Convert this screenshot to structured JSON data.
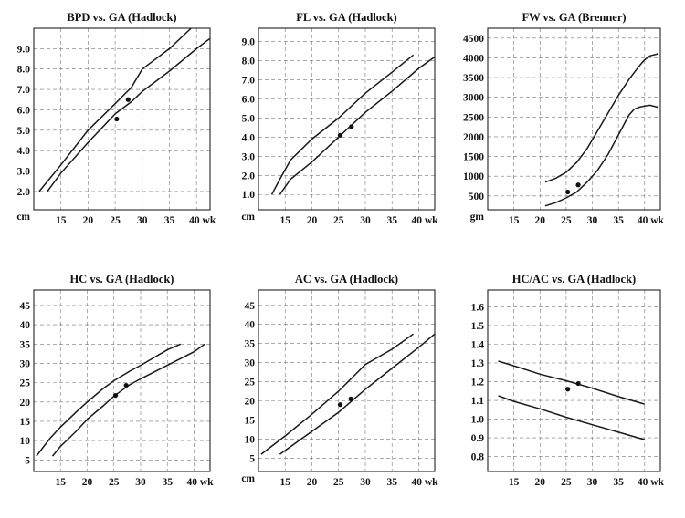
{
  "chart_data": [
    {
      "type": "line",
      "title": "BPD vs. GA (Hadlock)",
      "x_ticks": [
        "15",
        "20",
        "25",
        "30",
        "35",
        "40 wk"
      ],
      "x_tick_values": [
        15,
        20,
        25,
        30,
        35,
        40
      ],
      "y_ticks": [
        "2.0",
        "3.0",
        "4.0",
        "5.0",
        "6.0",
        "7.0",
        "8.0",
        "9.0"
      ],
      "y_tick_values": [
        2,
        3,
        4,
        5,
        6,
        7,
        8,
        9
      ],
      "y_unit": "cm",
      "xlim": [
        10,
        42.5
      ],
      "ylim": [
        1.1,
        10.0
      ],
      "grid": true,
      "series": [
        {
          "x": [
            11,
            15,
            20,
            25,
            28,
            30,
            35,
            39
          ],
          "y": [
            2.0,
            3.3,
            5.0,
            6.3,
            7.1,
            8.0,
            9.0,
            10.0
          ]
        },
        {
          "x": [
            12.5,
            15,
            20,
            25,
            28,
            30,
            35,
            40,
            42.5
          ],
          "y": [
            2.0,
            2.9,
            4.4,
            5.8,
            6.4,
            6.9,
            7.9,
            9.0,
            9.5
          ]
        }
      ],
      "points": [
        {
          "x": 25.3,
          "y": 5.55
        },
        {
          "x": 27.4,
          "y": 6.5
        }
      ]
    },
    {
      "type": "line",
      "title": "FL vs. GA (Hadlock)",
      "x_ticks": [
        "15",
        "20",
        "25",
        "30",
        "35",
        "40 wk"
      ],
      "x_tick_values": [
        15,
        20,
        25,
        30,
        35,
        40
      ],
      "y_ticks": [
        "1.0",
        "2.0",
        "3.0",
        "4.0",
        "5.0",
        "6.0",
        "7.0",
        "8.0",
        "9.0"
      ],
      "y_tick_values": [
        1,
        2,
        3,
        4,
        5,
        6,
        7,
        8,
        9
      ],
      "y_unit": "cm",
      "xlim": [
        10,
        43
      ],
      "ylim": [
        0.2,
        9.7
      ],
      "grid": true,
      "series": [
        {
          "x": [
            12.5,
            14,
            16,
            20,
            25,
            30,
            35,
            39
          ],
          "y": [
            1.0,
            1.8,
            2.8,
            3.9,
            5.0,
            6.3,
            7.4,
            8.3
          ]
        },
        {
          "x": [
            14,
            16,
            20,
            25,
            30,
            35,
            40,
            43
          ],
          "y": [
            1.0,
            1.8,
            2.7,
            4.0,
            5.3,
            6.4,
            7.6,
            8.2
          ]
        }
      ],
      "points": [
        {
          "x": 25.3,
          "y": 4.1
        },
        {
          "x": 27.4,
          "y": 4.55
        }
      ]
    },
    {
      "type": "line",
      "title": "FW vs. GA  (Brenner)",
      "x_ticks": [
        "15",
        "20",
        "25",
        "30",
        "35",
        "40 wk"
      ],
      "x_tick_values": [
        15,
        20,
        25,
        30,
        35,
        40
      ],
      "y_ticks": [
        "500",
        "1000",
        "1500",
        "2000",
        "2500",
        "3000",
        "3500",
        "4000",
        "4500"
      ],
      "y_tick_values": [
        500,
        1000,
        1500,
        2000,
        2500,
        3000,
        3500,
        4000,
        4500
      ],
      "y_unit": "gm",
      "xlim": [
        10,
        43
      ],
      "ylim": [
        150,
        4750
      ],
      "grid": true,
      "series": [
        {
          "x": [
            21,
            23,
            25,
            27,
            29,
            31,
            33,
            35,
            37,
            39,
            40,
            41,
            42.5
          ],
          "y": [
            850,
            950,
            1100,
            1350,
            1700,
            2150,
            2600,
            3050,
            3450,
            3800,
            3950,
            4050,
            4100
          ]
        },
        {
          "x": [
            21,
            23,
            25,
            27,
            29,
            31,
            33,
            35,
            36,
            37,
            38,
            39,
            40,
            41,
            42.5
          ],
          "y": [
            250,
            330,
            450,
            600,
            850,
            1150,
            1550,
            2050,
            2300,
            2550,
            2700,
            2750,
            2780,
            2800,
            2750
          ]
        }
      ],
      "points": [
        {
          "x": 25.3,
          "y": 600
        },
        {
          "x": 27.3,
          "y": 780
        }
      ]
    },
    {
      "type": "line",
      "title": "HC vs. GA (Hadlock)",
      "x_ticks": [
        "15",
        "20",
        "25",
        "30",
        "35",
        "40 wk"
      ],
      "x_tick_values": [
        15,
        20,
        25,
        30,
        35,
        40
      ],
      "y_ticks": [
        "5",
        "10",
        "15",
        "20",
        "25",
        "30",
        "35",
        "40",
        "45"
      ],
      "y_tick_values": [
        5,
        10,
        15,
        20,
        25,
        30,
        35,
        40,
        45
      ],
      "xlim": [
        10,
        43
      ],
      "ylim": [
        2,
        49
      ],
      "grid": true,
      "series": [
        {
          "x": [
            10.5,
            13,
            15,
            18,
            20,
            23,
            25,
            28,
            30,
            35,
            37.5
          ],
          "y": [
            6,
            10.5,
            13.5,
            17.5,
            20,
            23.5,
            25.5,
            28,
            29.5,
            33.5,
            35
          ]
        },
        {
          "x": [
            13.5,
            15,
            18,
            20,
            23,
            25,
            28,
            30,
            35,
            40,
            42
          ],
          "y": [
            6,
            8.5,
            12.5,
            15.5,
            19,
            21.5,
            24.5,
            26,
            29.5,
            33,
            35
          ]
        }
      ],
      "points": [
        {
          "x": 25.3,
          "y": 21.7
        },
        {
          "x": 27.3,
          "y": 24.3
        }
      ]
    },
    {
      "type": "line",
      "title": "AC vs. GA (Hadlock)",
      "x_ticks": [
        "15",
        "20",
        "25",
        "30",
        "35",
        "40 wk"
      ],
      "x_tick_values": [
        15,
        20,
        25,
        30,
        35,
        40
      ],
      "y_ticks": [
        "5",
        "10",
        "15",
        "20",
        "25",
        "30",
        "35",
        "40",
        "45"
      ],
      "y_tick_values": [
        5,
        10,
        15,
        20,
        25,
        30,
        35,
        40,
        45
      ],
      "y_unit": "cm",
      "xlim": [
        10,
        43
      ],
      "ylim": [
        1.5,
        49
      ],
      "grid": true,
      "series": [
        {
          "x": [
            10.5,
            15,
            20,
            25,
            30,
            35,
            39
          ],
          "y": [
            6,
            10.8,
            16.5,
            22.5,
            29.5,
            33.5,
            37.5
          ]
        },
        {
          "x": [
            14,
            20,
            25,
            30,
            35,
            40,
            43
          ],
          "y": [
            6,
            12,
            17,
            23,
            28.5,
            34,
            37.5
          ]
        }
      ],
      "points": [
        {
          "x": 25.3,
          "y": 19.0
        },
        {
          "x": 27.3,
          "y": 20.5
        }
      ]
    },
    {
      "type": "line",
      "title": "HC/AC vs. GA  (Hadlock)",
      "x_ticks": [
        "15",
        "20",
        "25",
        "30",
        "35",
        "40 wk"
      ],
      "x_tick_values": [
        15,
        20,
        25,
        30,
        35,
        40
      ],
      "y_ticks": [
        "0.8",
        "0.9",
        "1.0",
        "1.1",
        "1.2",
        "1.3",
        "1.4",
        "1.5",
        "1.6"
      ],
      "y_tick_values": [
        0.8,
        0.9,
        1.0,
        1.1,
        1.2,
        1.3,
        1.4,
        1.5,
        1.6
      ],
      "xlim": [
        10,
        43
      ],
      "ylim": [
        0.72,
        1.69
      ],
      "grid": true,
      "series": [
        {
          "x": [
            12,
            15,
            20,
            25,
            30,
            35,
            40
          ],
          "y": [
            1.31,
            1.285,
            1.24,
            1.205,
            1.165,
            1.12,
            1.08
          ]
        },
        {
          "x": [
            12,
            15,
            20,
            25,
            30,
            35,
            40
          ],
          "y": [
            1.125,
            1.095,
            1.055,
            1.01,
            0.97,
            0.93,
            0.89
          ]
        }
      ],
      "points": [
        {
          "x": 25.3,
          "y": 1.16
        },
        {
          "x": 27.3,
          "y": 1.19
        }
      ]
    }
  ]
}
